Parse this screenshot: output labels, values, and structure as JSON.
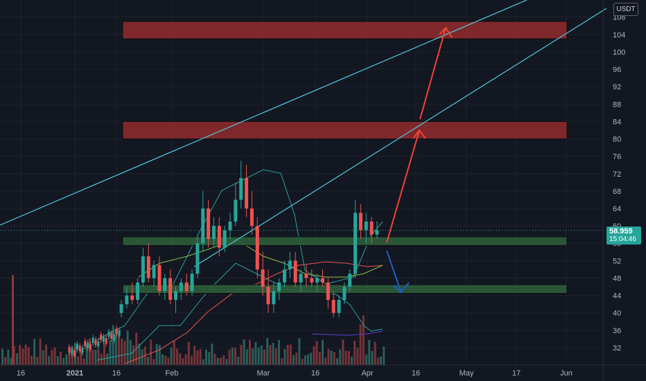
{
  "currency_badge": "USDT",
  "last_price": "58.959",
  "countdown": "15:04:46",
  "colors": {
    "background": "#131722",
    "up": "#26a69a",
    "down": "#ef5350",
    "zone_red": "#8b2a2d",
    "zone_green": "#2e5c3a",
    "trendline": "#4dd0e1",
    "arrow_up": "#f44336",
    "arrow_down": "#1e5fc7"
  },
  "chart_data": {
    "type": "candlestick",
    "y_ticks": [
      "108",
      "104",
      "100",
      "96",
      "92",
      "88",
      "84",
      "80",
      "76",
      "72",
      "68",
      "64",
      "60",
      "56",
      "52",
      "48",
      "44",
      "40",
      "36",
      "32"
    ],
    "x_ticks": [
      "16",
      "2021",
      "16",
      "Feb",
      "Mar",
      "16",
      "Apr",
      "16",
      "May",
      "17",
      "Jun"
    ],
    "ylim": [
      28,
      110
    ],
    "grid": true,
    "resistance_zones": [
      [
        103,
        107
      ],
      [
        80,
        84
      ]
    ],
    "support_zones": [
      [
        55.5,
        57.5
      ],
      [
        44.5,
        46.5
      ]
    ],
    "candles": [
      [
        40,
        43,
        39,
        42
      ],
      [
        42,
        46,
        41,
        44
      ],
      [
        44,
        47,
        42,
        43
      ],
      [
        43,
        48,
        42,
        47
      ],
      [
        47,
        55,
        46,
        53
      ],
      [
        53,
        56,
        47,
        48
      ],
      [
        48,
        52,
        46,
        51
      ],
      [
        51,
        53,
        44,
        45
      ],
      [
        45,
        49,
        43,
        48
      ],
      [
        48,
        50,
        42,
        43
      ],
      [
        43,
        46,
        40,
        45
      ],
      [
        45,
        48,
        43,
        47
      ],
      [
        47,
        49,
        44,
        45
      ],
      [
        45,
        50,
        44,
        49
      ],
      [
        49,
        58,
        48,
        56
      ],
      [
        56,
        68,
        54,
        64
      ],
      [
        64,
        66,
        55,
        57
      ],
      [
        57,
        62,
        55,
        60
      ],
      [
        60,
        62,
        53,
        55
      ],
      [
        55,
        60,
        54,
        59
      ],
      [
        59,
        63,
        57,
        61
      ],
      [
        61,
        70,
        60,
        66
      ],
      [
        66,
        75,
        64,
        71
      ],
      [
        71,
        74,
        62,
        64
      ],
      [
        64,
        68,
        58,
        60
      ],
      [
        60,
        62,
        48,
        50
      ],
      [
        50,
        54,
        44,
        46
      ],
      [
        46,
        50,
        40,
        42
      ],
      [
        42,
        47,
        40,
        45
      ],
      [
        45,
        48,
        43,
        47
      ],
      [
        47,
        52,
        46,
        50
      ],
      [
        50,
        54,
        48,
        52
      ],
      [
        52,
        54,
        46,
        47
      ],
      [
        47,
        50,
        45,
        49
      ],
      [
        49,
        51,
        46,
        48
      ],
      [
        48,
        50,
        46,
        47
      ],
      [
        47,
        49,
        45,
        48
      ],
      [
        48,
        50,
        46,
        47
      ],
      [
        47,
        48,
        41,
        43
      ],
      [
        43,
        45,
        39,
        40
      ],
      [
        40,
        44,
        39,
        43
      ],
      [
        43,
        47,
        42,
        46
      ],
      [
        46,
        50,
        45,
        49
      ],
      [
        49,
        66,
        48,
        63
      ],
      [
        63,
        65,
        57,
        59
      ],
      [
        59,
        63,
        56,
        61
      ],
      [
        61,
        62,
        56,
        58
      ],
      [
        58,
        61,
        57,
        59
      ]
    ]
  }
}
